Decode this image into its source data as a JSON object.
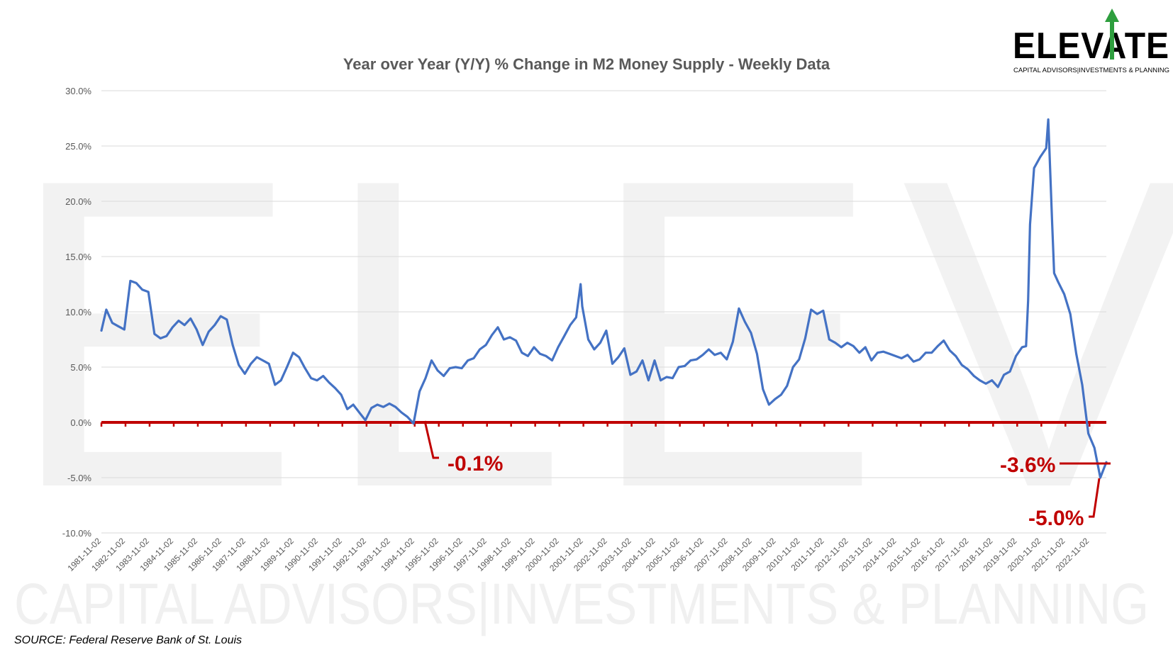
{
  "logo": {
    "word": "ELEVATE",
    "tagline": "CAPITAL ADVISORS|INVESTMENTS & PLANNING",
    "accent_color": "#2e9e3e"
  },
  "source": "SOURCE: Federal Reserve Bank of St. Louis",
  "chart_data": {
    "type": "line",
    "title": "Year over Year (Y/Y) % Change in M2 Money Supply - Weekly Data",
    "xlabel": "",
    "ylabel": "",
    "ylim": [
      -10,
      30
    ],
    "y_tick_labels": [
      "30.0%",
      "25.0%",
      "20.0%",
      "15.0%",
      "10.0%",
      "5.0%",
      "0.0%",
      "-5.0%",
      "-10.0%"
    ],
    "x_tick_labels": [
      "1981-11-02",
      "1982-11-02",
      "1983-11-02",
      "1984-11-02",
      "1985-11-02",
      "1986-11-02",
      "1987-11-02",
      "1988-11-02",
      "1989-11-02",
      "1990-11-02",
      "1991-11-02",
      "1992-11-02",
      "1993-11-02",
      "1994-11-02",
      "1995-11-02",
      "1996-11-02",
      "1997-11-02",
      "1998-11-02",
      "1999-11-02",
      "2000-11-02",
      "2001-11-02",
      "2002-11-02",
      "2003-11-02",
      "2004-11-02",
      "2005-11-02",
      "2006-11-02",
      "2007-11-02",
      "2008-11-02",
      "2009-11-02",
      "2010-11-02",
      "2011-11-02",
      "2012-11-02",
      "2013-11-02",
      "2014-11-02",
      "2015-11-02",
      "2016-11-02",
      "2017-11-02",
      "2018-11-02",
      "2019-11-02",
      "2020-11-02",
      "2021-11-02",
      "2022-11-02"
    ],
    "grid": true,
    "series": [
      {
        "color": "#4472c4",
        "x": [
          "1981-11-02",
          "1982-01-15",
          "1982-04-15",
          "1982-07-15",
          "1982-10-15",
          "1983-01-15",
          "1983-04-15",
          "1983-07-15",
          "1983-10-15",
          "1984-01-15",
          "1984-04-15",
          "1984-07-15",
          "1984-10-15",
          "1985-01-15",
          "1985-04-15",
          "1985-07-15",
          "1985-10-15",
          "1986-01-15",
          "1986-04-15",
          "1986-07-15",
          "1986-10-15",
          "1987-01-15",
          "1987-04-15",
          "1987-07-15",
          "1987-10-15",
          "1988-01-15",
          "1988-04-15",
          "1988-07-15",
          "1988-10-15",
          "1989-01-15",
          "1989-04-15",
          "1989-07-15",
          "1989-10-15",
          "1990-01-15",
          "1990-04-15",
          "1990-07-15",
          "1990-10-15",
          "1991-01-15",
          "1991-04-15",
          "1991-07-15",
          "1991-10-15",
          "1992-01-15",
          "1992-04-15",
          "1992-07-15",
          "1992-10-15",
          "1993-01-15",
          "1993-04-15",
          "1993-07-15",
          "1993-10-15",
          "1994-01-15",
          "1994-04-15",
          "1994-07-15",
          "1994-10-15",
          "1995-01-15",
          "1995-04-15",
          "1995-07-15",
          "1995-10-15",
          "1996-01-15",
          "1996-04-15",
          "1996-07-15",
          "1996-10-15",
          "1997-01-15",
          "1997-04-15",
          "1997-07-15",
          "1997-10-15",
          "1998-01-15",
          "1998-04-15",
          "1998-07-15",
          "1998-10-15",
          "1999-01-15",
          "1999-04-15",
          "1999-07-15",
          "1999-10-15",
          "2000-01-15",
          "2000-04-15",
          "2000-07-15",
          "2000-10-15",
          "2001-01-15",
          "2001-04-15",
          "2001-07-15",
          "2001-09-20",
          "2001-10-15",
          "2002-01-15",
          "2002-04-15",
          "2002-07-15",
          "2002-10-15",
          "2003-01-15",
          "2003-04-15",
          "2003-07-15",
          "2003-10-15",
          "2004-01-15",
          "2004-04-15",
          "2004-07-15",
          "2004-10-15",
          "2005-01-15",
          "2005-04-15",
          "2005-07-15",
          "2005-10-15",
          "2006-01-15",
          "2006-04-15",
          "2006-07-15",
          "2006-10-15",
          "2007-01-15",
          "2007-04-15",
          "2007-07-15",
          "2007-10-15",
          "2008-01-15",
          "2008-04-15",
          "2008-07-15",
          "2008-10-15",
          "2009-01-15",
          "2009-04-15",
          "2009-07-15",
          "2009-10-15",
          "2010-01-15",
          "2010-04-15",
          "2010-07-15",
          "2010-10-15",
          "2011-01-15",
          "2011-04-15",
          "2011-07-15",
          "2011-10-15",
          "2012-01-15",
          "2012-04-15",
          "2012-07-15",
          "2012-10-15",
          "2013-01-15",
          "2013-04-15",
          "2013-07-15",
          "2013-10-15",
          "2014-01-15",
          "2014-04-15",
          "2014-07-15",
          "2014-10-15",
          "2015-01-15",
          "2015-04-15",
          "2015-07-15",
          "2015-10-15",
          "2016-01-15",
          "2016-04-15",
          "2016-07-15",
          "2016-10-15",
          "2017-01-15",
          "2017-04-15",
          "2017-07-15",
          "2017-10-15",
          "2018-01-15",
          "2018-04-15",
          "2018-07-15",
          "2018-10-15",
          "2019-01-15",
          "2019-04-15",
          "2019-07-15",
          "2019-10-15",
          "2020-01-15",
          "2020-03-15",
          "2020-04-15",
          "2020-05-15",
          "2020-07-15",
          "2020-10-15",
          "2021-01-15",
          "2021-02-15",
          "2021-03-15",
          "2021-04-15",
          "2021-05-15",
          "2021-07-15",
          "2021-10-15",
          "2022-01-15",
          "2022-04-15",
          "2022-07-15",
          "2022-10-15",
          "2023-01-15",
          "2023-04-15",
          "2023-07-15"
        ],
        "values": [
          8.3,
          10.2,
          9.0,
          8.7,
          8.4,
          12.8,
          12.6,
          12.0,
          11.8,
          8.0,
          7.6,
          7.8,
          8.6,
          9.2,
          8.8,
          9.4,
          8.4,
          7.0,
          8.2,
          8.8,
          9.6,
          9.3,
          7.0,
          5.2,
          4.4,
          5.3,
          5.9,
          5.6,
          5.3,
          3.4,
          3.8,
          5.0,
          6.3,
          5.9,
          4.9,
          4.0,
          3.8,
          4.2,
          3.6,
          3.1,
          2.5,
          1.2,
          1.6,
          0.9,
          0.2,
          1.3,
          1.6,
          1.4,
          1.7,
          1.4,
          0.9,
          0.5,
          -0.1,
          2.8,
          4.0,
          5.6,
          4.7,
          4.2,
          4.9,
          5.0,
          4.9,
          5.6,
          5.8,
          6.6,
          7.0,
          7.9,
          8.6,
          7.5,
          7.7,
          7.4,
          6.3,
          6.0,
          6.8,
          6.2,
          6.0,
          5.6,
          6.8,
          7.8,
          8.8,
          9.5,
          12.5,
          10.5,
          7.5,
          6.6,
          7.2,
          8.3,
          5.3,
          5.9,
          6.7,
          4.3,
          4.6,
          5.6,
          3.8,
          5.6,
          3.8,
          4.1,
          4.0,
          5.0,
          5.1,
          5.6,
          5.7,
          6.1,
          6.6,
          6.1,
          6.3,
          5.7,
          7.3,
          10.3,
          9.1,
          8.1,
          6.2,
          3.0,
          1.6,
          2.1,
          2.5,
          3.3,
          5.0,
          5.7,
          7.6,
          10.2,
          9.8,
          10.1,
          7.5,
          7.2,
          6.8,
          7.2,
          6.9,
          6.3,
          6.8,
          5.6,
          6.3,
          6.4,
          6.2,
          6.0,
          5.8,
          6.1,
          5.5,
          5.7,
          6.3,
          6.3,
          6.9,
          7.4,
          6.5,
          6.0,
          5.2,
          4.8,
          4.2,
          3.8,
          3.5,
          3.8,
          3.2,
          4.3,
          4.6,
          6.0,
          6.8,
          6.9,
          11.0,
          17.9,
          23.0,
          24.0,
          24.8,
          27.4,
          23.0,
          18.0,
          13.5,
          12.7,
          11.6,
          9.8,
          6.2,
          3.4,
          -1.0,
          -2.3,
          -5.0,
          -3.6
        ]
      }
    ],
    "annotations": [
      "-0.1%",
      "-3.6%",
      "-5.0%"
    ],
    "reference_line": {
      "y": 0,
      "color": "#c00000"
    }
  }
}
